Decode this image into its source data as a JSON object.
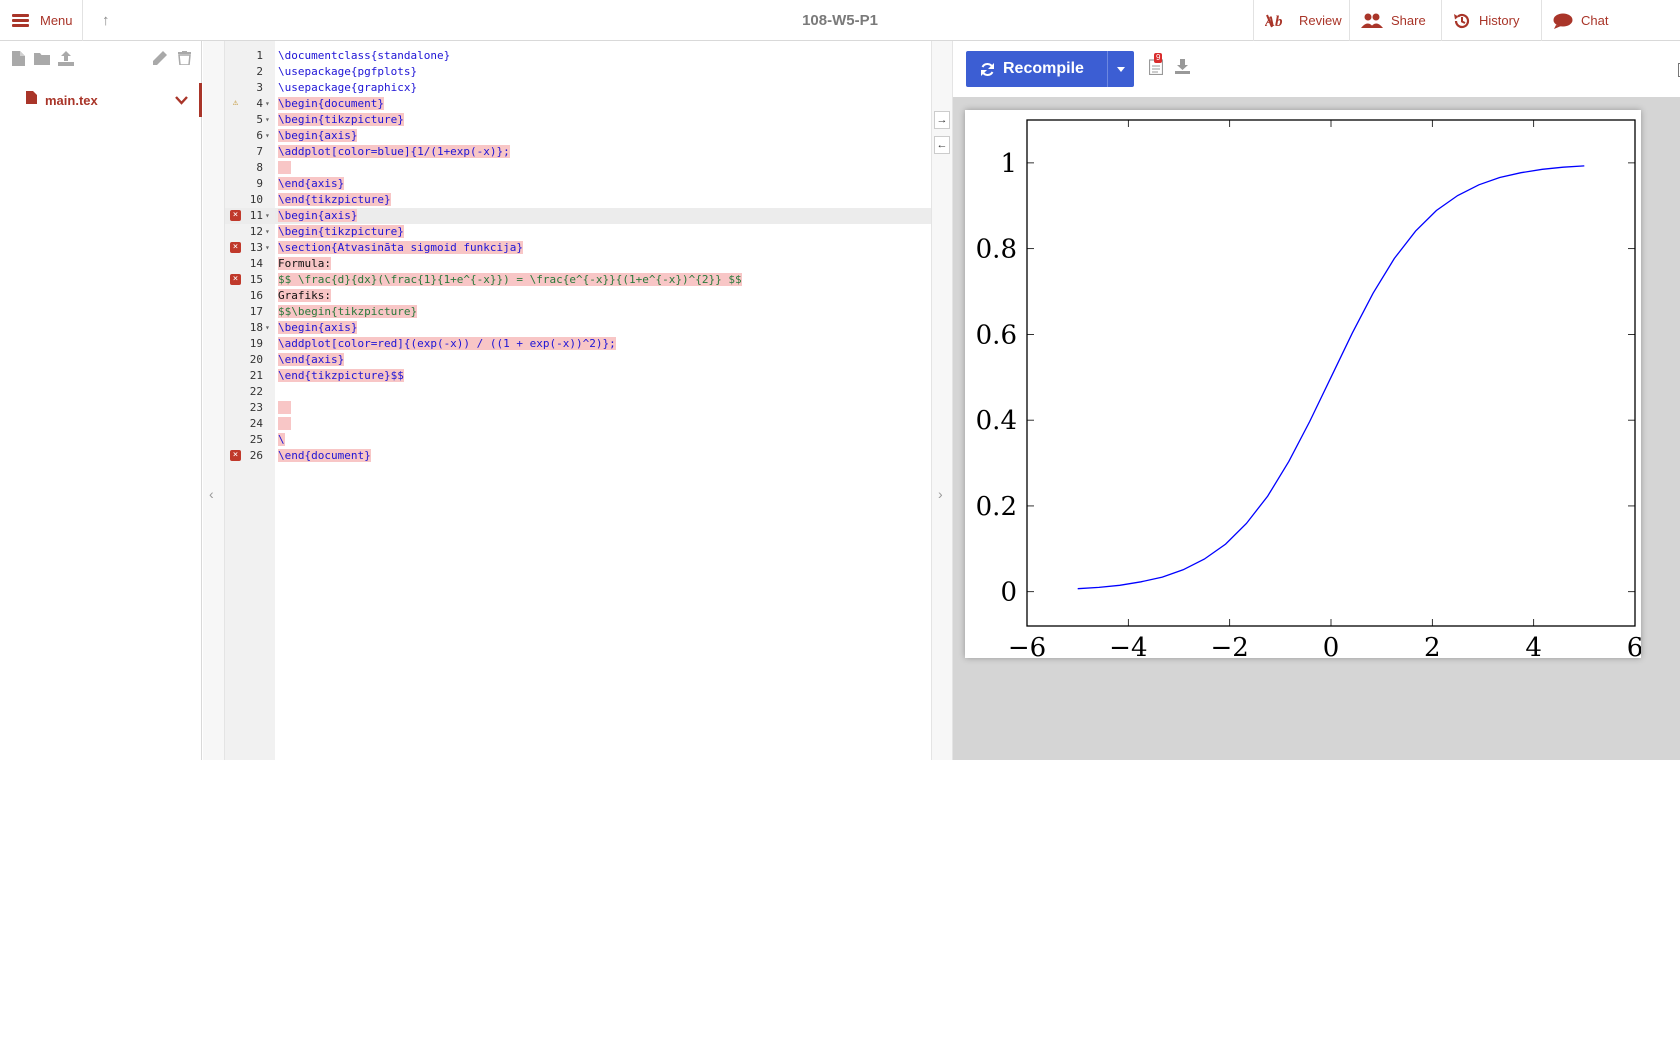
{
  "topbar": {
    "menu_label": "Menu",
    "project_title": "108-W5-P1",
    "review_label": "Review",
    "share_label": "Share",
    "history_label": "History",
    "chat_label": "Chat",
    "accent_color": "#a93529"
  },
  "file_tree": {
    "files": [
      {
        "name": "main.tex",
        "active": true
      }
    ],
    "toolbar_icons": [
      "new-file-icon",
      "new-folder-icon",
      "upload-icon",
      "rename-icon",
      "delete-icon"
    ]
  },
  "editor": {
    "lines": [
      {
        "n": "1",
        "text": "\\documentclass{standalone}"
      },
      {
        "n": "2",
        "text": "\\usepackage{pgfplots}"
      },
      {
        "n": "3",
        "text": "\\usepackage{graphicx}"
      },
      {
        "n": "4",
        "text": "\\begin{document}",
        "marker": "warning",
        "fold": true
      },
      {
        "n": "5",
        "text": "\\begin{tikzpicture}",
        "fold": true
      },
      {
        "n": "6",
        "text": "\\begin{axis}",
        "fold": true
      },
      {
        "n": "7",
        "text": "\\addplot[color=blue]{1/(1+exp(-x)};"
      },
      {
        "n": "8",
        "text": ""
      },
      {
        "n": "9",
        "text": "\\end{axis}"
      },
      {
        "n": "10",
        "text": "\\end{tikzpicture}"
      },
      {
        "n": "11",
        "text": "\\begin{axis}",
        "marker": "error",
        "fold": true
      },
      {
        "n": "12",
        "text": "\\begin{tikzpicture}",
        "fold": true
      },
      {
        "n": "13",
        "text": "\\section{Atvasināta sigmoid funkcija}",
        "marker": "error",
        "fold": true
      },
      {
        "n": "14",
        "text": "Formula:"
      },
      {
        "n": "15",
        "text": "$$ \\frac{d}{dx}(\\frac{1}{1+e^{-x}}) = \\frac{e^{-x}}{(1+e^{-x})^{2}} $$",
        "marker": "error"
      },
      {
        "n": "16",
        "text": "Grafiks:"
      },
      {
        "n": "17",
        "text": "$$\\begin{tikzpicture}"
      },
      {
        "n": "18",
        "text": "\\begin{axis}",
        "fold": true
      },
      {
        "n": "19",
        "text": "\\addplot[color=red]{(exp(-x)) / ((1 + exp(-x))^2)};"
      },
      {
        "n": "20",
        "text": "\\end{axis}"
      },
      {
        "n": "21",
        "text": "\\end{tikzpicture}$$"
      },
      {
        "n": "22",
        "text": ""
      },
      {
        "n": "23",
        "text": ""
      },
      {
        "n": "24",
        "text": ""
      },
      {
        "n": "25",
        "text": "\\"
      },
      {
        "n": "26",
        "text": "\\end{document}",
        "marker": "error"
      }
    ],
    "current_line": "11"
  },
  "pdf_toolbar": {
    "recompile_label": "Recompile",
    "log_badge_count": "9",
    "button_color": "#3c5ed3"
  },
  "chart_data": {
    "type": "line",
    "title": "",
    "xlabel": "",
    "ylabel": "",
    "xlim": [
      -6,
      6
    ],
    "ylim": [
      -0.08,
      1.1
    ],
    "x_ticks": [
      -6,
      -4,
      -2,
      0,
      2,
      4,
      6
    ],
    "x_tick_labels": [
      "−6",
      "−4",
      "−2",
      "0",
      "2",
      "4",
      "6"
    ],
    "y_ticks": [
      0,
      0.2,
      0.4,
      0.6,
      0.8,
      1
    ],
    "y_tick_labels": [
      "0",
      "0.2",
      "0.4",
      "0.6",
      "0.8",
      "1"
    ],
    "grid": false,
    "series": [
      {
        "color": "#0000ff",
        "x": [
          -5,
          -4.58,
          -4.17,
          -3.75,
          -3.33,
          -2.92,
          -2.5,
          -2.08,
          -1.67,
          -1.25,
          -0.83,
          -0.42,
          0,
          0.42,
          0.83,
          1.25,
          1.67,
          2.08,
          2.5,
          2.92,
          3.33,
          3.75,
          4.17,
          4.58,
          5
        ],
        "values": [
          0.007,
          0.01,
          0.015,
          0.023,
          0.034,
          0.051,
          0.076,
          0.111,
          0.159,
          0.223,
          0.304,
          0.397,
          0.5,
          0.603,
          0.696,
          0.777,
          0.841,
          0.889,
          0.924,
          0.949,
          0.966,
          0.977,
          0.985,
          0.99,
          0.993
        ]
      }
    ]
  }
}
